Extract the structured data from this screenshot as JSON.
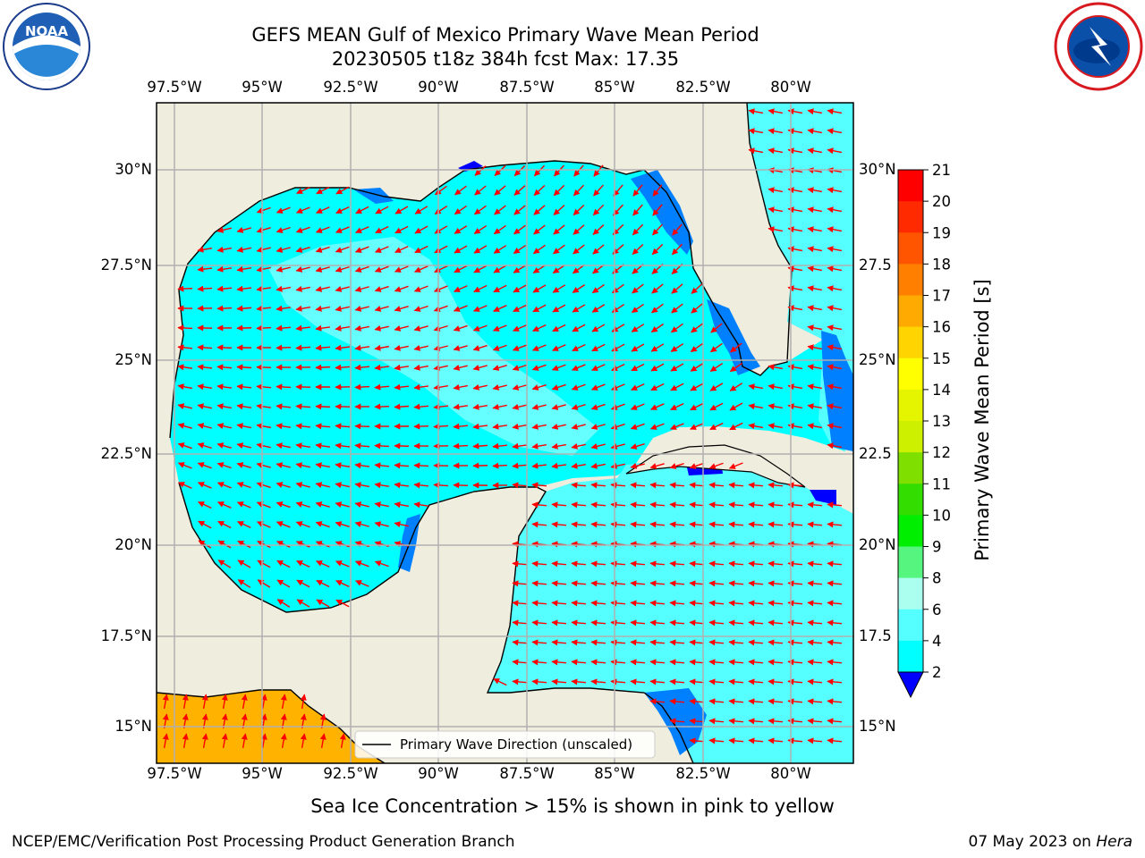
{
  "title_line1": "GEFS MEAN Gulf of Mexico Primary Wave Mean Period",
  "title_line2": "20230505 t18z 384h fcst   Max: 17.35",
  "subtitle": "Sea Ice Concentration > 15% is shown in pink to yellow",
  "footer_left": "NCEP/EMC/Verification Post Processing Product Generation Branch",
  "footer_date": "07 May 2023 on ",
  "footer_host": "Hera",
  "logos": {
    "left": "noaa-logo",
    "right": "national-weather-service-logo"
  },
  "legend_label": "Primary Wave Direction (unscaled)",
  "lon_ticks": [
    "97.5°W",
    "95°W",
    "92.5°W",
    "90°W",
    "87.5°W",
    "85°W",
    "82.5°W",
    "80°W"
  ],
  "lat_ticks_left": [
    "30°N",
    "27.5°N",
    "25°N",
    "22.5°N",
    "20°N",
    "17.5°N",
    "15°N"
  ],
  "lat_ticks_right": [
    "30°N",
    "27.5",
    "25°N",
    "22.5",
    "20°N",
    "17.5",
    "15°N"
  ],
  "colorbar": {
    "label": "Primary Wave Mean Period [s]",
    "ticks": [
      "21",
      "20",
      "19",
      "18",
      "17",
      "16",
      "15",
      "14",
      "13",
      "12",
      "11",
      "10",
      "9",
      "8",
      "6",
      "4",
      "2"
    ],
    "colors_top_to_bottom": [
      "#ff0000",
      "#ff2a00",
      "#ff5500",
      "#ff7f00",
      "#ffaa00",
      "#ffd400",
      "#ffff00",
      "#e5f500",
      "#ccf000",
      "#7fe000",
      "#33dd00",
      "#00ee00",
      "#55f57f",
      "#aaffee",
      "#55ffff",
      "#00ffff",
      "#0080ff"
    ],
    "under_color": "#0000ff"
  },
  "colors": {
    "land": "#efeddd",
    "ocean_main": "#00ffff",
    "ocean_light": "#55ffff",
    "ocean_pale": "#aaffff",
    "shallow": "#0080ff",
    "deep_blue": "#0000ff",
    "pacific": "#ffb300",
    "arrow": "#ff0000",
    "grid": "#b0b0b0"
  }
}
